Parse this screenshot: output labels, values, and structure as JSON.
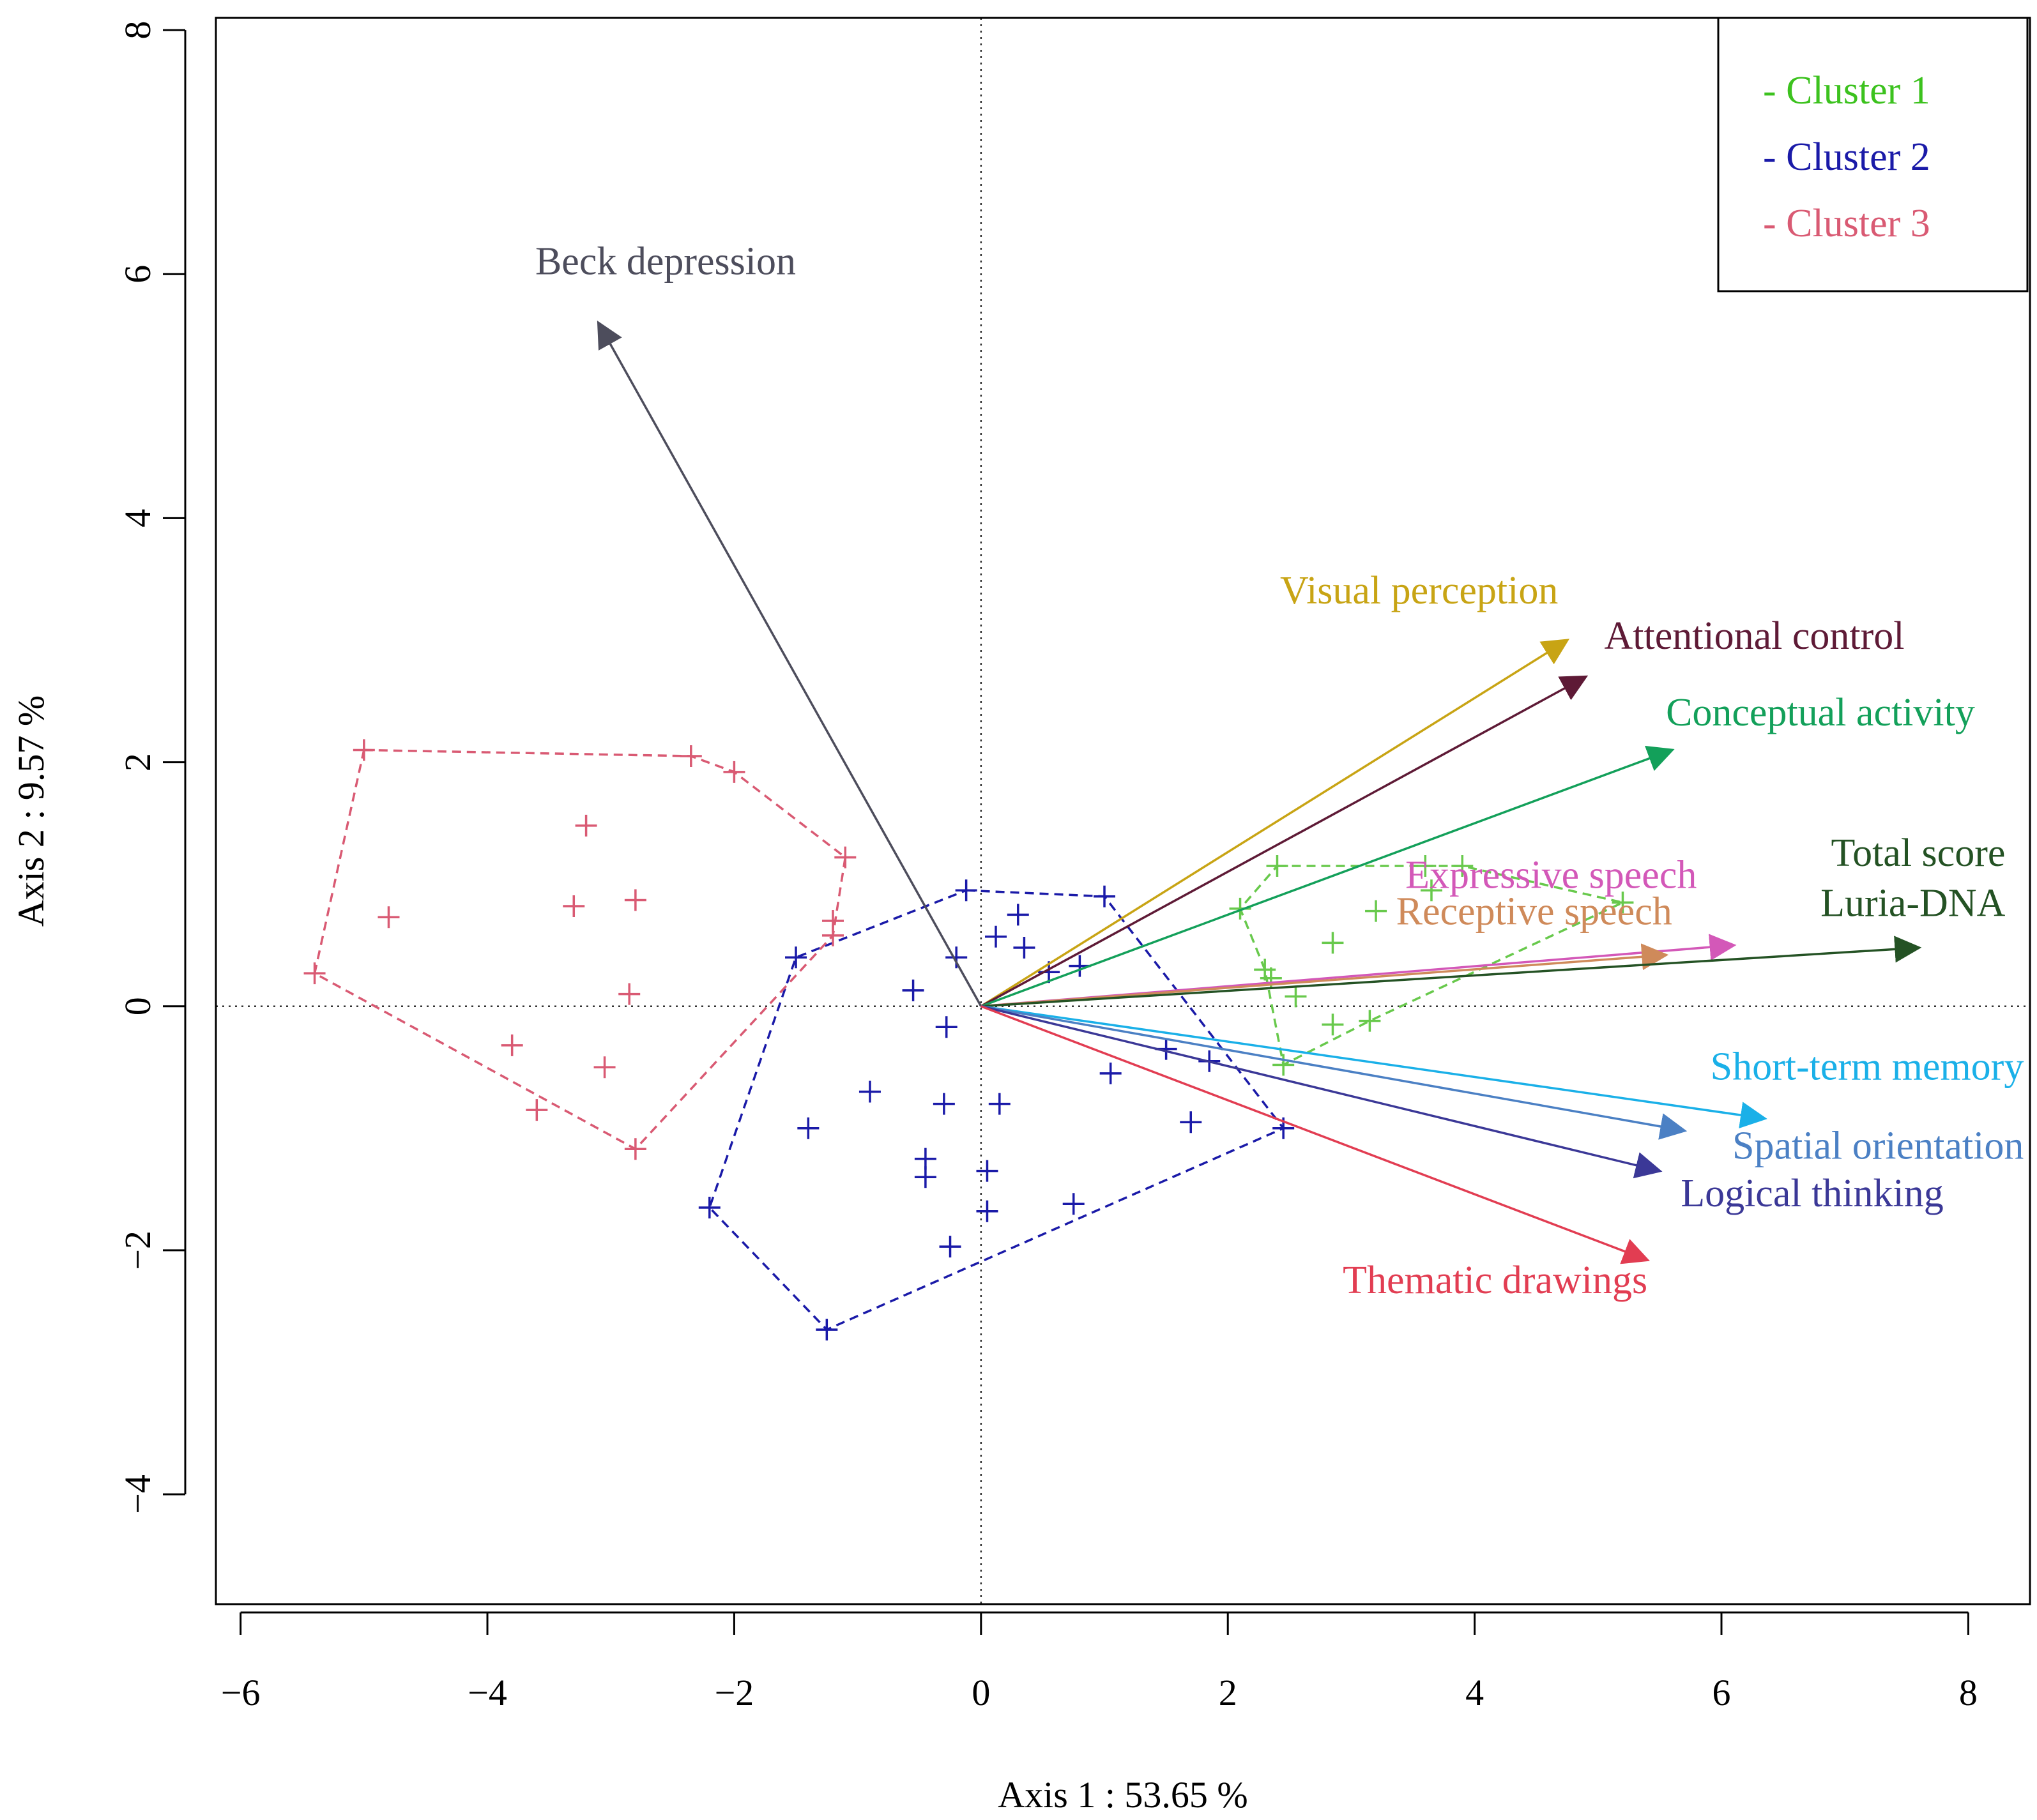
{
  "chart_data": {
    "type": "scatter",
    "subtype": "pca-biplot",
    "xlabel": "Axis 1 : 53.65 %",
    "ylabel": "Axis 2 : 9.57 %",
    "xlim": [
      -6.2,
      8.5
    ],
    "ylim": [
      -4.9,
      8.1
    ],
    "xticks": [
      -6,
      -4,
      -2,
      0,
      2,
      4,
      6,
      8
    ],
    "yticks": [
      -4,
      -2,
      0,
      2,
      4,
      6,
      8
    ],
    "xtick_labels": [
      "−6",
      "−4",
      "−2",
      "0",
      "2",
      "4",
      "6",
      "8"
    ],
    "ytick_labels": [
      "−4",
      "−2",
      "0",
      "2",
      "4",
      "6",
      "8"
    ],
    "reference_lines": {
      "x": 0,
      "y": 0,
      "style": "dotted"
    },
    "legend": {
      "position": "top-right",
      "entries": [
        {
          "label": "- Cluster 1",
          "color": "#3cc21e"
        },
        {
          "label": "- Cluster 2",
          "color": "#1a1aa8"
        },
        {
          "label": "- Cluster 3",
          "color": "#d95a73"
        }
      ]
    },
    "vectors": [
      {
        "name": "Beck depression",
        "x": -3.1,
        "y": 5.6,
        "color": "#4d4d5c",
        "label_x": -1.5,
        "label_y": 6.0,
        "anchor": "end"
      },
      {
        "name": "Visual perception",
        "x": 4.75,
        "y": 3.0,
        "color": "#c8a414",
        "label_x": 3.55,
        "label_y": 3.3,
        "anchor": "middle"
      },
      {
        "name": "Attentional control",
        "x": 4.9,
        "y": 2.7,
        "color": "#5e1a36",
        "label_x": 5.05,
        "label_y": 2.93,
        "anchor": "start"
      },
      {
        "name": "Conceptual activity",
        "x": 5.6,
        "y": 2.1,
        "color": "#13a05a",
        "label_x": 5.55,
        "label_y": 2.3,
        "anchor": "start"
      },
      {
        "name": "Expressive speech",
        "x": 6.1,
        "y": 0.5,
        "color": "#d358b8",
        "label_x": 5.8,
        "label_y": 0.97,
        "anchor": "end"
      },
      {
        "name": "Receptive speech",
        "x": 5.55,
        "y": 0.42,
        "color": "#cf8a5a",
        "label_x": 5.6,
        "label_y": 0.67,
        "anchor": "end"
      },
      {
        "name": "Total score",
        "x": 7.6,
        "y": 0.48,
        "color": "#245224",
        "label_x": 8.3,
        "label_y": 1.15,
        "anchor": "end"
      },
      {
        "name": "Luria-DNA",
        "x": 7.6,
        "y": 0.48,
        "color": "#245224",
        "label_x": 8.3,
        "label_y": 0.74,
        "anchor": "end"
      },
      {
        "name": "Short-term memory",
        "x": 6.35,
        "y": -0.92,
        "color": "#1ab0e8",
        "label_x": 8.45,
        "label_y": -0.6,
        "anchor": "end"
      },
      {
        "name": "Spatial orientation",
        "x": 5.7,
        "y": -1.02,
        "color": "#4b80c4",
        "label_x": 8.45,
        "label_y": -1.25,
        "anchor": "end"
      },
      {
        "name": "Logical thinking",
        "x": 5.5,
        "y": -1.35,
        "color": "#3b3897",
        "label_x": 7.8,
        "label_y": -1.64,
        "anchor": "end"
      },
      {
        "name": "Thematic drawings",
        "x": 5.4,
        "y": -2.08,
        "color": "#e23d52",
        "label_x": 5.4,
        "label_y": -2.35,
        "anchor": "end"
      }
    ],
    "clusters": [
      {
        "name": "Cluster 1",
        "color": "#68c94c",
        "points": [
          [
            2.4,
            1.15
          ],
          [
            3.6,
            1.15
          ],
          [
            3.9,
            1.15
          ],
          [
            3.65,
            0.95
          ],
          [
            2.1,
            0.8
          ],
          [
            3.2,
            0.78
          ],
          [
            5.2,
            0.85
          ],
          [
            2.85,
            0.52
          ],
          [
            2.3,
            0.3
          ],
          [
            2.35,
            0.23
          ],
          [
            2.55,
            0.08
          ],
          [
            2.85,
            -0.15
          ],
          [
            3.15,
            -0.12
          ],
          [
            2.45,
            -0.48
          ]
        ],
        "hull": [
          [
            2.4,
            1.15
          ],
          [
            3.9,
            1.15
          ],
          [
            5.2,
            0.85
          ],
          [
            3.15,
            -0.12
          ],
          [
            2.45,
            -0.48
          ],
          [
            2.3,
            0.3
          ],
          [
            2.1,
            0.8
          ]
        ]
      },
      {
        "name": "Cluster 2",
        "color": "#1a1aa8",
        "points": [
          [
            -0.12,
            0.95
          ],
          [
            1.0,
            0.9
          ],
          [
            0.3,
            0.75
          ],
          [
            0.12,
            0.57
          ],
          [
            0.35,
            0.48
          ],
          [
            -0.2,
            0.4
          ],
          [
            -1.5,
            0.4
          ],
          [
            0.8,
            0.33
          ],
          [
            0.55,
            0.28
          ],
          [
            -0.55,
            0.13
          ],
          [
            -0.28,
            -0.17
          ],
          [
            1.5,
            -0.35
          ],
          [
            1.85,
            -0.45
          ],
          [
            1.05,
            -0.55
          ],
          [
            -0.9,
            -0.7
          ],
          [
            -0.3,
            -0.8
          ],
          [
            0.15,
            -0.8
          ],
          [
            1.7,
            -0.95
          ],
          [
            2.45,
            -1.0
          ],
          [
            -1.4,
            -1.0
          ],
          [
            -0.45,
            -1.25
          ],
          [
            -0.45,
            -1.4
          ],
          [
            0.05,
            -1.35
          ],
          [
            -2.2,
            -1.65
          ],
          [
            0.75,
            -1.62
          ],
          [
            0.05,
            -1.68
          ],
          [
            -0.25,
            -1.97
          ],
          [
            -1.25,
            -2.65
          ]
        ],
        "hull": [
          [
            -0.12,
            0.95
          ],
          [
            1.0,
            0.9
          ],
          [
            2.45,
            -1.0
          ],
          [
            -1.25,
            -2.65
          ],
          [
            -2.2,
            -1.65
          ],
          [
            -1.5,
            0.4
          ]
        ]
      },
      {
        "name": "Cluster 3",
        "color": "#d95a73",
        "points": [
          [
            -5.0,
            2.1
          ],
          [
            -2.35,
            2.05
          ],
          [
            -2.0,
            1.92
          ],
          [
            -3.2,
            1.48
          ],
          [
            -1.1,
            1.22
          ],
          [
            -2.8,
            0.87
          ],
          [
            -3.3,
            0.82
          ],
          [
            -4.8,
            0.73
          ],
          [
            -1.2,
            0.7
          ],
          [
            -1.2,
            0.58
          ],
          [
            -2.85,
            0.1
          ],
          [
            -5.4,
            0.27
          ],
          [
            -3.8,
            -0.32
          ],
          [
            -3.05,
            -0.5
          ],
          [
            -3.6,
            -0.85
          ],
          [
            -2.8,
            -1.17
          ]
        ],
        "hull": [
          [
            -5.0,
            2.1
          ],
          [
            -2.35,
            2.05
          ],
          [
            -2.0,
            1.92
          ],
          [
            -1.1,
            1.22
          ],
          [
            -1.2,
            0.58
          ],
          [
            -2.8,
            -1.17
          ],
          [
            -5.4,
            0.27
          ]
        ]
      }
    ]
  }
}
